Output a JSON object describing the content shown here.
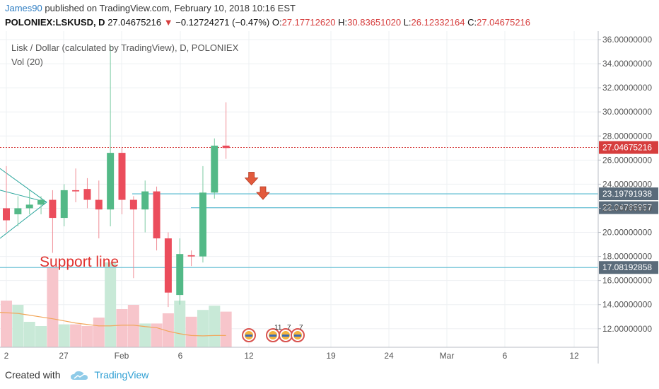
{
  "header": {
    "user": "James90",
    "published_text": "published on TradingView.com, February 10, 2018 10:16 EST",
    "symbol": "POLONIEX:LSKUSD, D",
    "last": "27.04675216",
    "change": "−0.12724271 (−0.47%)",
    "o_label": "O:",
    "o_value": "27.17712620",
    "h_label": "H:",
    "h_value": "30.83651020",
    "l_label": "L:",
    "l_value": "26.12332164",
    "c_label": "C:",
    "c_value": "27.04675216"
  },
  "legend": {
    "title": "Lisk / Dollar (calculated by TradingView), D, POLONIEX",
    "volume": "Vol (20)"
  },
  "annotation": {
    "support_text": "Support line"
  },
  "footer": {
    "created_with": "Created with",
    "brand": "TradingView"
  },
  "colors": {
    "up": "#53b987",
    "down": "#eb4d5c",
    "vol_up": "#c8e9d7",
    "vol_down": "#f7c5cb",
    "level_line": "#6fc3d6",
    "last_price": "#d63d3d",
    "arrow": "#e35a3c",
    "ma": "#f2a65a",
    "triangle": "#2aa59c"
  },
  "chart_data": {
    "type": "candlestick",
    "y_axis": {
      "min": 10.8,
      "max": 36.6,
      "ticks": [
        "36.00000000",
        "34.00000000",
        "32.00000000",
        "30.00000000",
        "28.00000000",
        "26.00000000",
        "24.00000000",
        "22.00000000",
        "20.00000000",
        "18.00000000",
        "16.00000000",
        "14.00000000",
        "12.00000000"
      ]
    },
    "x_axis": {
      "ticks": [
        "2",
        "27",
        "Feb",
        "6",
        "12",
        "19",
        "24",
        "Mar",
        "6",
        "12"
      ]
    },
    "candles": [
      {
        "o": 22.0,
        "h": 25.5,
        "l": 20.0,
        "c": 21.0
      },
      {
        "o": 21.5,
        "h": 23.0,
        "l": 20.5,
        "c": 22.0
      },
      {
        "o": 22.0,
        "h": 23.5,
        "l": 21.5,
        "c": 22.3
      },
      {
        "o": 22.3,
        "h": 23.0,
        "l": 21.5,
        "c": 22.7
      },
      {
        "o": 22.7,
        "h": 23.5,
        "l": 18.3,
        "c": 21.2
      },
      {
        "o": 21.2,
        "h": 24.0,
        "l": 20.5,
        "c": 23.5
      },
      {
        "o": 23.5,
        "h": 25.3,
        "l": 22.5,
        "c": 23.4
      },
      {
        "o": 23.6,
        "h": 24.5,
        "l": 22.0,
        "c": 22.7
      },
      {
        "o": 22.7,
        "h": 24.3,
        "l": 19.5,
        "c": 21.9
      },
      {
        "o": 21.9,
        "h": 35.5,
        "l": 20.5,
        "c": 26.6
      },
      {
        "o": 26.6,
        "h": 27.0,
        "l": 21.5,
        "c": 22.7
      },
      {
        "o": 22.7,
        "h": 23.0,
        "l": 16.2,
        "c": 21.9
      },
      {
        "o": 21.9,
        "h": 24.3,
        "l": 20.0,
        "c": 23.4
      },
      {
        "o": 23.4,
        "h": 23.8,
        "l": 18.5,
        "c": 19.5
      },
      {
        "o": 19.5,
        "h": 20.0,
        "l": 13.8,
        "c": 15.0
      },
      {
        "o": 14.8,
        "h": 19.5,
        "l": 14.0,
        "c": 18.2
      },
      {
        "o": 18.1,
        "h": 18.5,
        "l": 17.2,
        "c": 18.0
      },
      {
        "o": 18.0,
        "h": 25.5,
        "l": 17.5,
        "c": 23.3
      },
      {
        "o": 23.3,
        "h": 27.8,
        "l": 22.8,
        "c": 27.2
      },
      {
        "o": 27.2,
        "h": 30.8,
        "l": 26.1,
        "c": 27.0
      }
    ],
    "volumes": [
      0.55,
      0.5,
      0.3,
      0.25,
      0.95,
      0.27,
      0.27,
      0.25,
      0.35,
      1.0,
      0.45,
      0.5,
      0.28,
      0.28,
      0.4,
      0.55,
      0.36,
      0.44,
      0.49,
      0.42
    ],
    "vol_ma": [
      0.98,
      0.95,
      0.9,
      0.85,
      0.8,
      0.74,
      0.68,
      0.64,
      0.6,
      0.6,
      0.62,
      0.62,
      0.58,
      0.55,
      0.45,
      0.38,
      0.33,
      0.32,
      0.33,
      0.33
    ],
    "levels": [
      {
        "value": 23.19791938,
        "label": "23.19791938"
      },
      {
        "value": 22.04765957,
        "label": "22.04765957"
      },
      {
        "value": 17.08192858,
        "label": "17.08192858"
      }
    ],
    "last_price": {
      "value": 27.04675216,
      "label": "27.04675216"
    },
    "arrows": [
      {
        "candle": 21.2,
        "price": 24.4
      },
      {
        "candle": 22.2,
        "price": 23.2
      }
    ],
    "event_badges": [
      "11",
      "7",
      "7"
    ]
  }
}
